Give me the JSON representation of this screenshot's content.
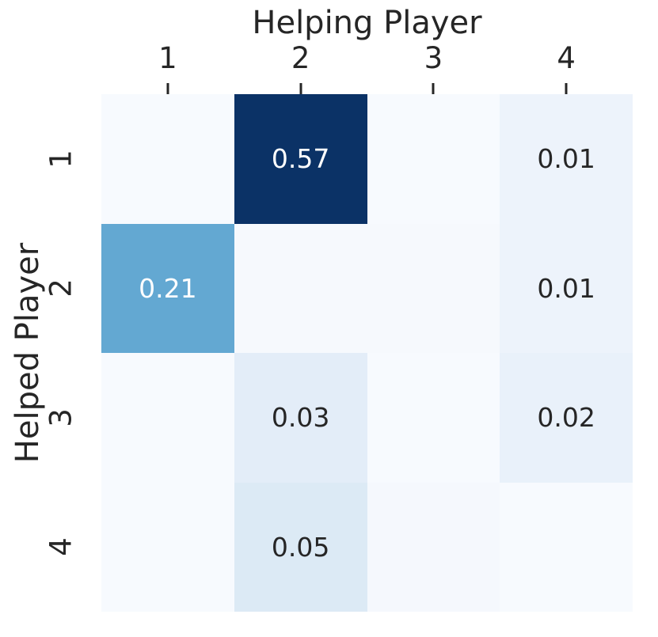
{
  "figure": {
    "background_color": "#ffffff",
    "text_color": "#262626",
    "tick_color": "#262626"
  },
  "chart_data": {
    "type": "heatmap",
    "title": "",
    "xlabel": "Helping Player",
    "ylabel": "Helped Player",
    "x_ticklabels": [
      "1",
      "2",
      "3",
      "4"
    ],
    "y_ticklabels": [
      "1",
      "2",
      "3",
      "4"
    ],
    "colormap": "Blues",
    "legend": "none",
    "grid": false,
    "values": [
      [
        0.0,
        0.57,
        0.0,
        0.01
      ],
      [
        0.21,
        0.0,
        0.0,
        0.01
      ],
      [
        0.0,
        0.03,
        0.0,
        0.02
      ],
      [
        0.0,
        0.05,
        0.0,
        0.0
      ]
    ],
    "annotations": [
      [
        "",
        "0.57",
        "",
        "0.01"
      ],
      [
        "0.21",
        "",
        "",
        "0.01"
      ],
      [
        "",
        "0.03",
        "",
        "0.02"
      ],
      [
        "",
        "0.05",
        "",
        ""
      ]
    ],
    "cell_colors": [
      [
        "#f7fafe",
        "#0b3266",
        "#f7fafe",
        "#edf3fb"
      ],
      [
        "#63a8d2",
        "#f6f9fd",
        "#f6f9fd",
        "#edf3fb"
      ],
      [
        "#f7fafe",
        "#e3edf8",
        "#f7fafe",
        "#e9f1fa"
      ],
      [
        "#f7fafe",
        "#dceaf5",
        "#f5f8fd",
        "#f7fafe"
      ]
    ],
    "annotation_colors": [
      [
        "#262626",
        "#ffffff",
        "#262626",
        "#262626"
      ],
      [
        "#ffffff",
        "#262626",
        "#262626",
        "#262626"
      ],
      [
        "#262626",
        "#262626",
        "#262626",
        "#262626"
      ],
      [
        "#262626",
        "#262626",
        "#262626",
        "#262626"
      ]
    ]
  }
}
